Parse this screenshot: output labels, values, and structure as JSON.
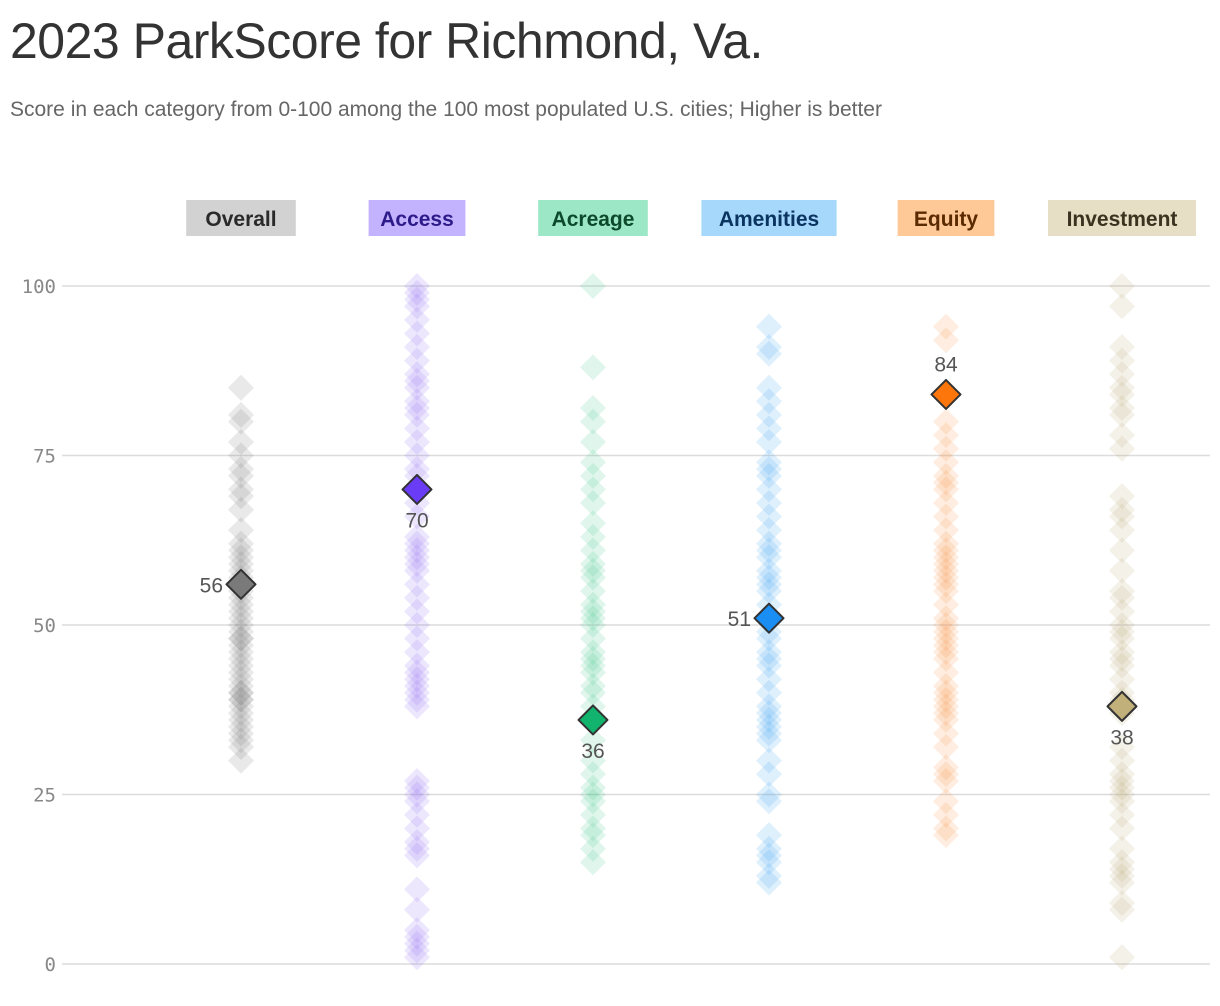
{
  "title": "2023 ParkScore for Richmond, Va.",
  "subtitle": "Score in each category from 0-100 among the 100 most populated U.S. cities; Higher is better",
  "chart_data": {
    "type": "scatter",
    "ylim": [
      0,
      100
    ],
    "yticks": [
      0,
      25,
      50,
      75,
      100
    ],
    "grid": true,
    "highlight_city": "Richmond, Va.",
    "categories": [
      {
        "name": "Overall",
        "label_bg": "#d2d2d2",
        "label_color": "#2a2a2a",
        "color": "#777777",
        "highlight_fill": "#7a7a7a",
        "value": 56,
        "label_side": "left",
        "distribution": [
          85,
          81,
          80,
          77,
          75,
          73,
          72,
          70,
          69,
          67,
          64,
          62,
          61,
          60,
          59,
          58,
          57,
          56,
          55,
          54,
          53,
          52,
          51,
          50,
          49,
          48,
          48,
          47,
          46,
          45,
          44,
          43,
          42,
          41,
          40,
          40,
          39,
          39,
          38,
          37,
          36,
          35,
          34,
          33,
          32,
          30
        ]
      },
      {
        "name": "Access",
        "label_bg": "#c3b2fd",
        "label_color": "#2d1b8a",
        "color": "#8c6cf2",
        "highlight_fill": "#6b3cf6",
        "value": 70,
        "label_side": "below",
        "distribution": [
          100,
          99,
          98,
          97,
          95,
          93,
          91,
          89,
          87,
          86,
          85,
          83,
          82,
          81,
          79,
          77,
          75,
          73,
          72,
          70,
          68,
          66,
          63,
          62,
          61,
          60,
          59,
          58,
          56,
          54,
          52,
          50,
          48,
          46,
          44,
          43,
          42,
          41,
          40,
          39,
          38,
          27,
          26,
          25,
          24,
          22,
          20,
          18,
          17,
          16,
          11,
          8,
          5,
          4,
          3,
          2,
          1
        ]
      },
      {
        "name": "Acreage",
        "label_bg": "#9ce8c6",
        "label_color": "#0c4a2b",
        "color": "#3ec98a",
        "highlight_fill": "#12b36c",
        "value": 36,
        "label_side": "below",
        "distribution": [
          100,
          88,
          82,
          80,
          77,
          74,
          72,
          70,
          68,
          65,
          63,
          61,
          59,
          58,
          57,
          55,
          53,
          52,
          51,
          50,
          48,
          46,
          45,
          44,
          43,
          41,
          40,
          38,
          36,
          33,
          30,
          28,
          26,
          25,
          24,
          22,
          20,
          19,
          17,
          15
        ]
      },
      {
        "name": "Amenities",
        "label_bg": "#a5d8fb",
        "label_color": "#0b3460",
        "color": "#3aa4f2",
        "highlight_fill": "#1a8ef2",
        "value": 51,
        "label_side": "left",
        "distribution": [
          94,
          91,
          90,
          85,
          83,
          81,
          79,
          77,
          74,
          73,
          72,
          70,
          68,
          66,
          64,
          62,
          61,
          60,
          58,
          57,
          56,
          55,
          53,
          51,
          49,
          48,
          46,
          45,
          44,
          42,
          40,
          38,
          37,
          36,
          35,
          34,
          33,
          30,
          28,
          25,
          24,
          19,
          17,
          16,
          15,
          13,
          12
        ]
      },
      {
        "name": "Equity",
        "label_bg": "#fec897",
        "label_color": "#5a2a00",
        "color": "#fb8d3c",
        "highlight_fill": "#fd760b",
        "value": 84,
        "label_side": "above",
        "distribution": [
          94,
          92,
          80,
          78,
          76,
          74,
          72,
          71,
          70,
          68,
          66,
          64,
          62,
          61,
          60,
          59,
          58,
          57,
          56,
          55,
          53,
          51,
          50,
          49,
          48,
          47,
          46,
          45,
          43,
          41,
          40,
          39,
          38,
          37,
          36,
          34,
          32,
          29,
          28,
          27,
          24,
          22,
          20,
          19
        ]
      },
      {
        "name": "Investment",
        "label_bg": "#e6dfc5",
        "label_color": "#3a3320",
        "color": "#b8a875",
        "highlight_fill": "#c2b07a",
        "value": 38,
        "label_side": "below",
        "distribution": [
          100,
          97,
          91,
          89,
          87,
          85,
          84,
          82,
          81,
          78,
          76,
          69,
          67,
          66,
          64,
          61,
          58,
          55,
          54,
          52,
          50,
          49,
          48,
          46,
          45,
          44,
          42,
          40,
          39,
          37,
          32,
          30,
          28,
          27,
          26,
          25,
          24,
          22,
          20,
          17,
          15,
          14,
          13,
          12,
          9,
          8,
          1
        ]
      }
    ]
  }
}
